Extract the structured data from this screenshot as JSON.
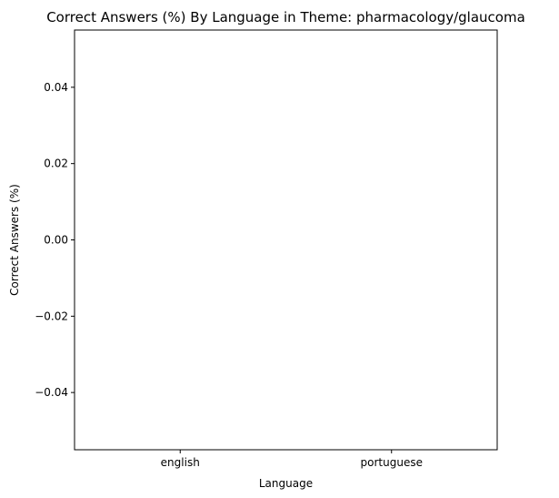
{
  "chart_data": {
    "type": "bar",
    "title": "Correct Answers (%) By Language in Theme: pharmacology/glaucoma",
    "xlabel": "Language",
    "ylabel": "Correct Answers (%)",
    "categories": [
      "english",
      "portuguese"
    ],
    "values": [
      0,
      0
    ],
    "ylim": [
      -0.055,
      0.055
    ],
    "yticks": [
      -0.04,
      -0.02,
      0.0,
      0.02,
      0.04
    ],
    "ytick_labels": [
      "−0.04",
      "−0.02",
      "0.00",
      "0.02",
      "0.04"
    ],
    "grid": false,
    "legend": "none"
  }
}
